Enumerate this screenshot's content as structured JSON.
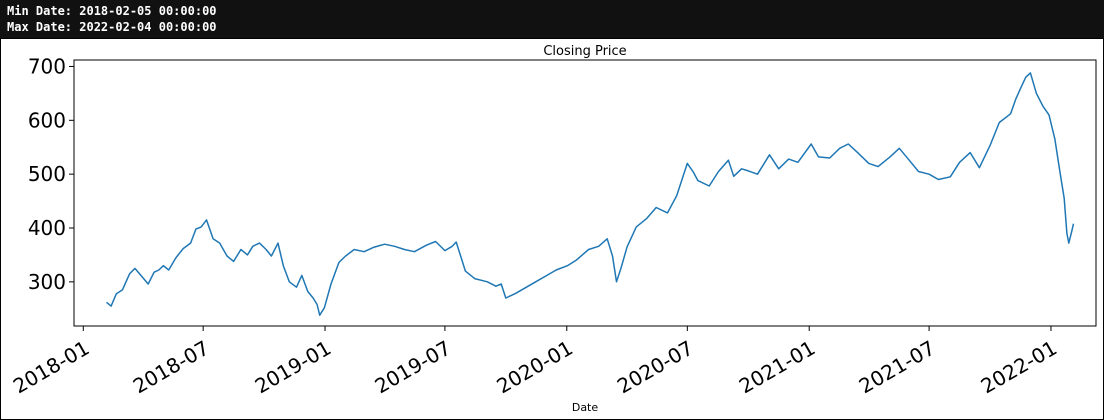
{
  "console": {
    "lines": [
      "Min Date: 2018-02-05 00:00:00",
      "Max Date: 2022-02-04 00:00:00"
    ]
  },
  "colors": {
    "line": "#1f77b4"
  },
  "chart_data": {
    "type": "line",
    "title": "Closing Price",
    "xlabel": "Date",
    "ylabel": "",
    "x_type": "date",
    "xlim": [
      "2017-12-18",
      "2022-03-10"
    ],
    "ylim": [
      218,
      712
    ],
    "xticks": [
      "2018-01-01",
      "2018-07-01",
      "2019-01-01",
      "2019-07-01",
      "2020-01-01",
      "2020-07-01",
      "2021-01-01",
      "2021-07-01",
      "2022-01-01"
    ],
    "xtick_labels": [
      "2018-01",
      "2018-07",
      "2019-01",
      "2019-07",
      "2020-01",
      "2020-07",
      "2021-01",
      "2021-07",
      "2022-01"
    ],
    "yticks": [
      300,
      400,
      500,
      600,
      700
    ],
    "ytick_labels": [
      "300",
      "400",
      "500",
      "600",
      "700"
    ],
    "grid": false,
    "legend": "none",
    "series": [
      {
        "x": [
          "2018-02-05",
          "2018-02-12",
          "2018-02-20",
          "2018-03-01",
          "2018-03-12",
          "2018-03-20",
          "2018-03-29",
          "2018-04-09",
          "2018-04-18",
          "2018-04-25",
          "2018-05-02",
          "2018-05-10",
          "2018-05-21",
          "2018-06-01",
          "2018-06-12",
          "2018-06-20",
          "2018-06-28",
          "2018-07-06",
          "2018-07-16",
          "2018-07-26",
          "2018-08-06",
          "2018-08-16",
          "2018-08-27",
          "2018-09-06",
          "2018-09-14",
          "2018-09-24",
          "2018-10-04",
          "2018-10-12",
          "2018-10-22",
          "2018-10-30",
          "2018-11-08",
          "2018-11-19",
          "2018-11-27",
          "2018-12-06",
          "2018-12-14",
          "2018-12-20",
          "2018-12-24",
          "2018-12-31",
          "2019-01-10",
          "2019-01-22",
          "2019-02-01",
          "2019-02-14",
          "2019-03-01",
          "2019-03-15",
          "2019-04-01",
          "2019-04-16",
          "2019-05-01",
          "2019-05-16",
          "2019-06-03",
          "2019-06-17",
          "2019-07-01",
          "2019-07-12",
          "2019-07-18",
          "2019-08-01",
          "2019-08-15",
          "2019-09-03",
          "2019-09-16",
          "2019-09-24",
          "2019-10-01",
          "2019-10-15",
          "2019-11-01",
          "2019-11-15",
          "2019-12-02",
          "2019-12-16",
          "2020-01-02",
          "2020-01-15",
          "2020-02-03",
          "2020-02-18",
          "2020-03-02",
          "2020-03-10",
          "2020-03-16",
          "2020-03-23",
          "2020-04-01",
          "2020-04-15",
          "2020-05-01",
          "2020-05-15",
          "2020-06-01",
          "2020-06-15",
          "2020-07-01",
          "2020-07-10",
          "2020-07-17",
          "2020-08-03",
          "2020-08-17",
          "2020-09-01",
          "2020-09-09",
          "2020-09-21",
          "2020-10-01",
          "2020-10-15",
          "2020-11-02",
          "2020-11-16",
          "2020-12-01",
          "2020-12-15",
          "2021-01-04",
          "2021-01-15",
          "2021-02-01",
          "2021-02-16",
          "2021-03-01",
          "2021-03-15",
          "2021-04-01",
          "2021-04-15",
          "2021-05-03",
          "2021-05-17",
          "2021-06-01",
          "2021-06-15",
          "2021-07-01",
          "2021-07-15",
          "2021-08-02",
          "2021-08-16",
          "2021-09-01",
          "2021-09-15",
          "2021-10-01",
          "2021-10-15",
          "2021-11-01",
          "2021-11-09",
          "2021-11-17",
          "2021-11-24",
          "2021-12-01",
          "2021-12-10",
          "2021-12-20",
          "2021-12-29",
          "2022-01-07",
          "2022-01-14",
          "2022-01-21",
          "2022-01-25",
          "2022-01-28",
          "2022-02-01",
          "2022-02-04"
        ],
        "y": [
          262,
          255,
          278,
          285,
          315,
          325,
          312,
          296,
          318,
          322,
          330,
          322,
          345,
          362,
          372,
          398,
          402,
          415,
          380,
          372,
          348,
          338,
          360,
          350,
          366,
          372,
          360,
          348,
          372,
          330,
          300,
          290,
          312,
          282,
          270,
          258,
          238,
          252,
          296,
          336,
          348,
          360,
          356,
          364,
          370,
          366,
          360,
          356,
          368,
          375,
          358,
          366,
          374,
          320,
          306,
          300,
          292,
          296,
          270,
          278,
          290,
          300,
          312,
          322,
          330,
          340,
          360,
          366,
          380,
          348,
          300,
          326,
          365,
          402,
          418,
          438,
          428,
          460,
          520,
          504,
          488,
          478,
          505,
          526,
          496,
          510,
          506,
          500,
          536,
          510,
          528,
          522,
          556,
          532,
          530,
          548,
          556,
          540,
          520,
          514,
          532,
          548,
          526,
          505,
          500,
          490,
          495,
          522,
          540,
          512,
          553,
          596,
          612,
          640,
          662,
          680,
          688,
          650,
          626,
          610,
          565,
          508,
          455,
          390,
          372,
          392,
          408
        ]
      }
    ]
  }
}
